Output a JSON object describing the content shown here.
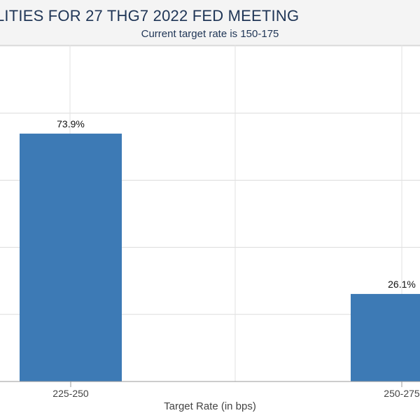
{
  "chart_data": {
    "type": "bar",
    "title": "LITIES FOR 27 THG7 2022 FED MEETING",
    "subtitle": "Current target rate is 150-175",
    "xlabel": "Target Rate (in bps)",
    "ylabel": "",
    "categories": [
      "225-250",
      "250-275"
    ],
    "series": [
      {
        "values": [
          73.9,
          26.1
        ],
        "data_labels": [
          "73.9%",
          "26.1%"
        ]
      }
    ],
    "ylim": [
      0,
      100
    ],
    "grid": true,
    "legend": "none",
    "bar_color": "#3d7ab5"
  }
}
